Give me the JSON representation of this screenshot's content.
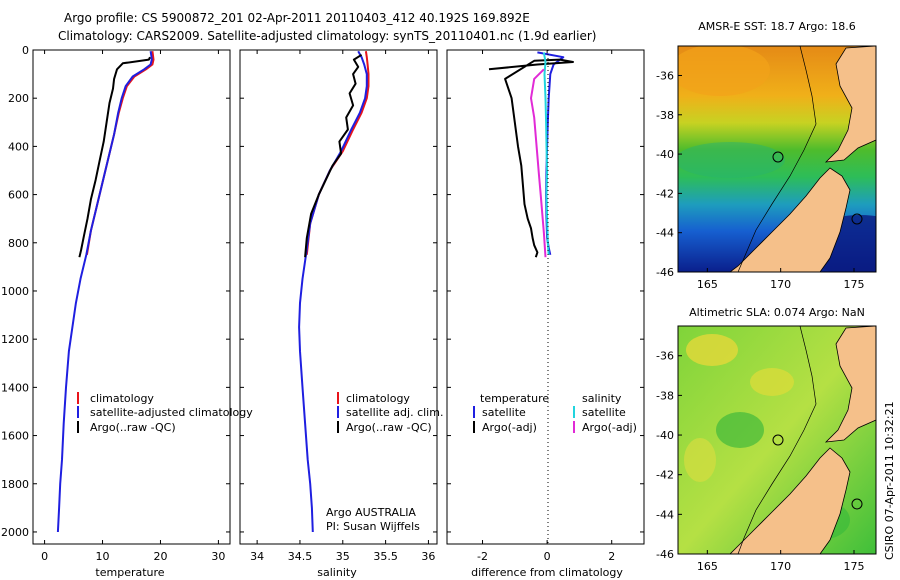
{
  "header": {
    "line1": "Argo profile: CS 5900872_201 02-Apr-2011 20110403_412 40.192S 169.892E",
    "line2": "Climatology: CARS2009. Satellite-adjusted climatology: synTS_20110401.nc (1.9d earlier)"
  },
  "colors": {
    "climatology": "#e8141b",
    "satellite": "#1f1fe0",
    "argo": "#000000",
    "salinity_satellite": "#21d4de",
    "salinity_argo_adj": "#e12ad6",
    "land": "#f5c08a"
  },
  "chart_data": [
    {
      "type": "line",
      "xlabel": "temperature",
      "ylabel": "",
      "xlim": [
        -2,
        32
      ],
      "ylim": [
        2050,
        0
      ],
      "xticks": [
        0,
        10,
        20,
        30
      ],
      "yticks": [
        0,
        200,
        400,
        600,
        800,
        1000,
        1200,
        1400,
        1600,
        1800,
        2000
      ],
      "legend": {
        "placement": "lower-left",
        "entries": [
          "climatology",
          "satellite-adjusted climatology",
          "Argo(..raw -QC)"
        ]
      },
      "series": [
        {
          "name": "climatology",
          "color": "#e8141b",
          "x": [
            18.6,
            18.7,
            18.8,
            18.6,
            17.5,
            15.5,
            14.2,
            13.5,
            12.8,
            12.0,
            11.0,
            10.0,
            9.0,
            8.0,
            7.3
          ],
          "y": [
            5,
            20,
            40,
            60,
            80,
            110,
            150,
            200,
            260,
            350,
            450,
            550,
            650,
            750,
            850
          ]
        },
        {
          "name": "satellite-adjusted climatology",
          "color": "#1f1fe0",
          "x": [
            18.3,
            18.4,
            18.5,
            18.3,
            17.2,
            15.2,
            14.0,
            13.3,
            12.7,
            12.0,
            11.0,
            10.0,
            9.0,
            8.0,
            7.2,
            6.2,
            5.4,
            4.8,
            4.2,
            3.7,
            3.3,
            3.0,
            2.7,
            2.5,
            2.3
          ],
          "y": [
            5,
            20,
            40,
            60,
            80,
            110,
            150,
            200,
            260,
            350,
            450,
            550,
            650,
            750,
            850,
            950,
            1050,
            1150,
            1250,
            1400,
            1550,
            1700,
            1800,
            1900,
            2000
          ]
        },
        {
          "name": "Argo(..raw -QC)",
          "color": "#000000",
          "x": [
            18.2,
            18.0,
            13.5,
            12.5,
            12.0,
            11.8,
            11.2,
            10.7,
            10.2,
            9.5,
            8.8,
            8.0,
            7.4,
            6.8,
            6.3,
            6.0
          ],
          "y": [
            30,
            40,
            55,
            80,
            120,
            160,
            220,
            300,
            380,
            460,
            540,
            620,
            700,
            770,
            830,
            860
          ]
        }
      ],
      "annotations": []
    },
    {
      "type": "line",
      "xlabel": "salinity",
      "ylabel": "",
      "xlim": [
        33.8,
        36.1
      ],
      "ylim": [
        2050,
        0
      ],
      "xticks": [
        34,
        34.5,
        35,
        35.5,
        36
      ],
      "yticks": [
        0,
        200,
        400,
        600,
        800,
        1000,
        1200,
        1400,
        1600,
        1800,
        2000
      ],
      "legend": {
        "placement": "lower-right",
        "entries": [
          "climatology",
          "satellite adj. clim.",
          "Argo(..raw -QC)"
        ]
      },
      "annotations": [
        "Argo AUSTRALIA",
        "PI: Susan Wijffels"
      ],
      "series": [
        {
          "name": "climatology",
          "color": "#e8141b",
          "x": [
            35.27,
            35.28,
            35.29,
            35.3,
            35.3,
            35.28,
            35.22,
            35.12,
            35.0,
            34.85,
            34.72,
            34.62,
            34.58
          ],
          "y": [
            5,
            30,
            60,
            100,
            150,
            200,
            260,
            330,
            420,
            500,
            600,
            720,
            850
          ]
        },
        {
          "name": "satellite adj. clim.",
          "color": "#1f1fe0",
          "x": [
            35.18,
            35.22,
            35.25,
            35.28,
            35.28,
            35.26,
            35.2,
            35.1,
            34.98,
            34.85,
            34.72,
            34.62,
            34.57,
            34.53,
            34.5,
            34.49,
            34.5,
            34.53,
            34.56,
            34.59,
            34.62,
            34.64,
            34.65
          ],
          "y": [
            5,
            30,
            60,
            100,
            150,
            200,
            260,
            330,
            420,
            500,
            600,
            720,
            850,
            950,
            1050,
            1150,
            1250,
            1400,
            1550,
            1700,
            1800,
            1900,
            2000
          ]
        },
        {
          "name": "Argo(..raw -QC)",
          "color": "#000000",
          "x": [
            35.22,
            35.13,
            35.18,
            35.12,
            35.15,
            35.08,
            35.12,
            35.04,
            35.06,
            34.96,
            34.98,
            34.88,
            34.8,
            34.72,
            34.63,
            34.58,
            34.56
          ],
          "y": [
            20,
            40,
            70,
            100,
            140,
            180,
            230,
            280,
            330,
            380,
            430,
            480,
            540,
            600,
            680,
            780,
            860
          ]
        }
      ]
    },
    {
      "type": "line",
      "xlabel": "difference from climatology",
      "ylabel": "",
      "xlim": [
        -3.1,
        3.0
      ],
      "ylim": [
        2050,
        0
      ],
      "xticks": [
        -2,
        0,
        2
      ],
      "yticks": [
        0,
        200,
        400,
        600,
        800,
        1000,
        1200,
        1400,
        1600,
        1800,
        2000
      ],
      "legend": {
        "placement": "lower",
        "groups": [
          "temperature",
          "salinity"
        ],
        "entries": [
          "satellite",
          "Argo(-adj)",
          "satellite",
          "Argo(-adj)"
        ]
      },
      "annotations": [],
      "series": [
        {
          "name": "temperature satellite",
          "color": "#1f1fe0",
          "x": [
            -0.3,
            0.5,
            0.2,
            0.1,
            0.05,
            0.02,
            0.0,
            -0.02,
            -0.03,
            -0.02,
            0.0,
            0.05,
            0.1
          ],
          "y": [
            10,
            30,
            60,
            100,
            200,
            300,
            400,
            500,
            600,
            700,
            780,
            820,
            850
          ]
        },
        {
          "name": "temperature Argo(-adj)",
          "color": "#000000",
          "x": [
            -1.8,
            -0.3,
            0.8,
            0.4,
            -0.4,
            -1.3,
            -1.1,
            -1.0,
            -0.9,
            -0.8,
            -0.75,
            -0.7,
            -0.6,
            -0.5,
            -0.45,
            -0.4,
            -0.3,
            -0.35
          ],
          "y": [
            80,
            60,
            50,
            40,
            45,
            120,
            200,
            300,
            400,
            480,
            560,
            640,
            700,
            740,
            780,
            810,
            840,
            860
          ]
        },
        {
          "name": "salinity satellite",
          "color": "#21d4de",
          "x": [
            -0.1,
            -0.05,
            -0.08,
            -0.05,
            -0.03,
            -0.02,
            0.0,
            -0.02,
            0.0,
            0.02,
            0.05
          ],
          "y": [
            10,
            50,
            100,
            200,
            300,
            400,
            500,
            600,
            700,
            800,
            850
          ]
        },
        {
          "name": "salinity Argo(-adj)",
          "color": "#e12ad6",
          "x": [
            -0.1,
            -0.4,
            -0.5,
            -0.4,
            -0.35,
            -0.3,
            -0.25,
            -0.2,
            -0.15,
            -0.1,
            -0.05
          ],
          "y": [
            80,
            120,
            200,
            280,
            360,
            440,
            520,
            600,
            680,
            760,
            860
          ]
        }
      ]
    },
    {
      "type": "heatmap",
      "title": "AMSR-E SST: 18.7 Argo: 18.6",
      "xlim": [
        163,
        176.5
      ],
      "ylim": [
        -46,
        -34.5
      ],
      "xticks": [
        165,
        170,
        175
      ],
      "yticks": [
        -36,
        -38,
        -40,
        -42,
        -44,
        -46
      ],
      "marker": {
        "lon": 169.892,
        "lat": -40.192
      },
      "marker2": {
        "lon": 175.0,
        "lat": -43.5
      }
    },
    {
      "type": "heatmap",
      "title": "Altimetric SLA: 0.074 Argo: NaN",
      "xlim": [
        163,
        176.5
      ],
      "ylim": [
        -46,
        -34.5
      ],
      "xticks": [
        165,
        170,
        175
      ],
      "yticks": [
        -36,
        -38,
        -40,
        -42,
        -44,
        -46
      ],
      "marker": {
        "lon": 169.892,
        "lat": -40.192
      },
      "marker2": {
        "lon": 175.0,
        "lat": -43.5
      }
    }
  ],
  "footer": {
    "credit": "CSIRO 07-Apr-2011 10:32:21"
  }
}
